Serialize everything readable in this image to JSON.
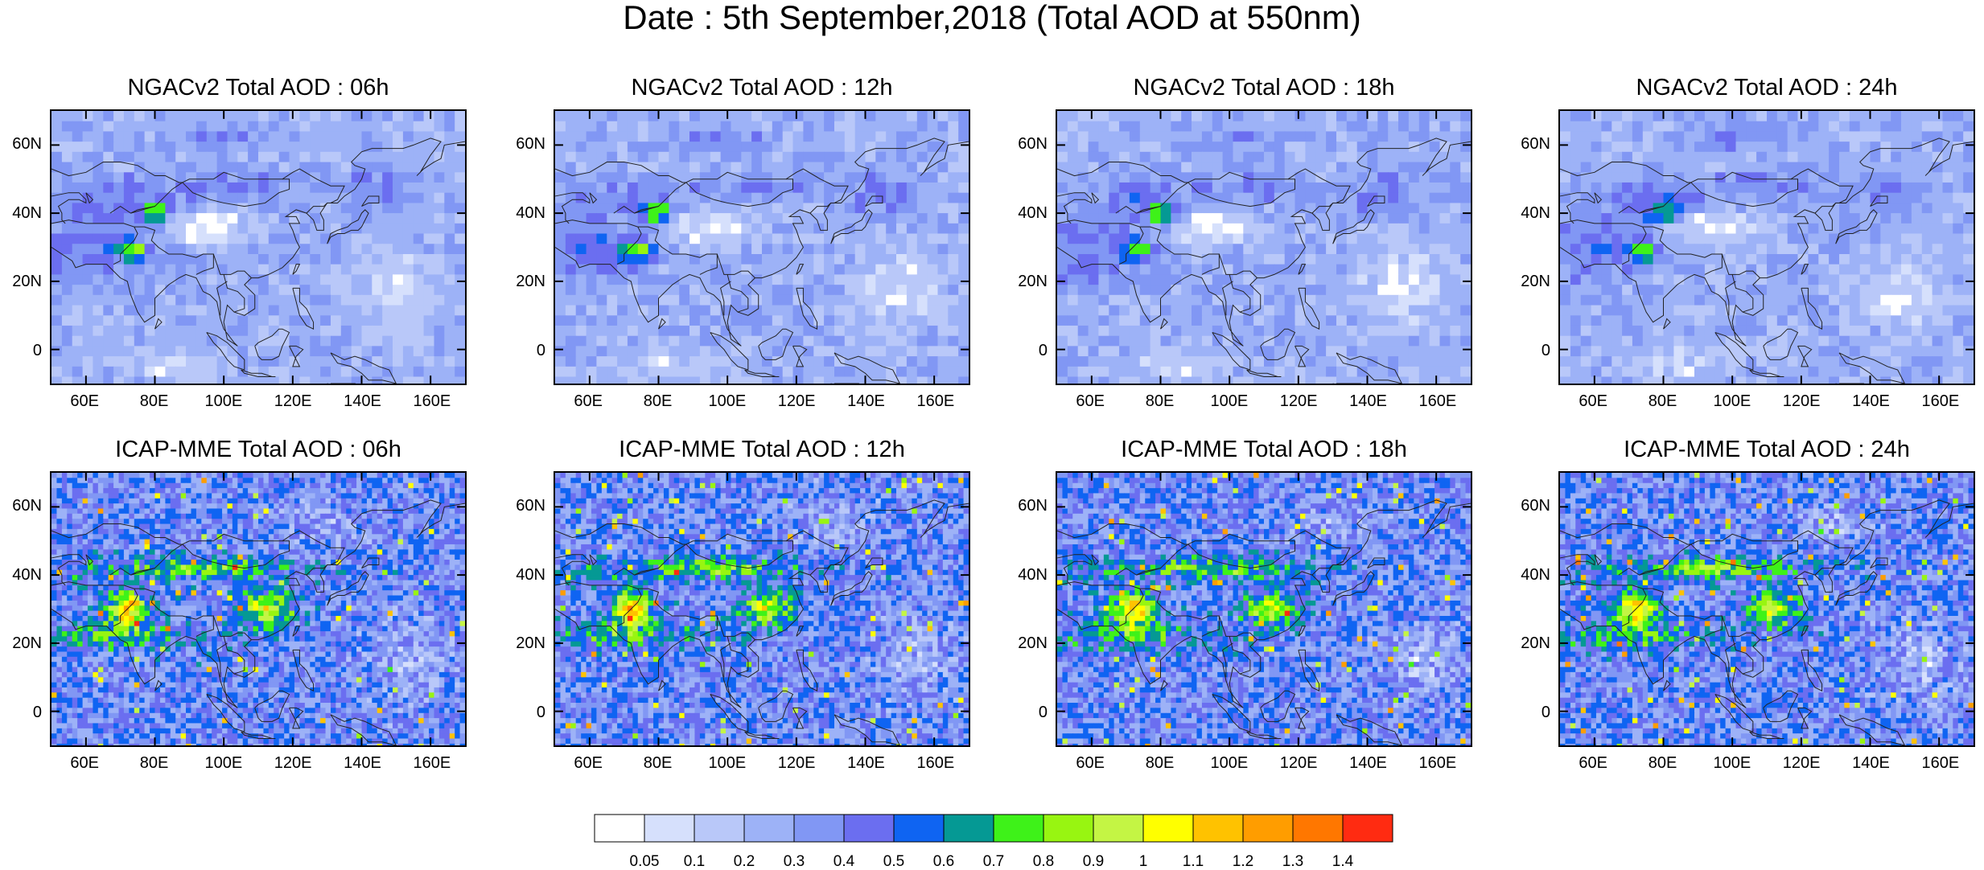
{
  "title": "Date : 5th September,2018 (Total AOD at 550nm)",
  "panels": [
    {
      "title": "NGACv2 Total AOD : 06h",
      "model": "ngac",
      "seed": 11
    },
    {
      "title": "NGACv2 Total AOD : 12h",
      "model": "ngac",
      "seed": 23
    },
    {
      "title": "NGACv2 Total AOD : 18h",
      "model": "ngac",
      "seed": 37
    },
    {
      "title": "NGACv2 Total AOD : 24h",
      "model": "ngac",
      "seed": 41
    },
    {
      "title": "ICAP-MME Total AOD : 06h",
      "model": "icap",
      "seed": 53
    },
    {
      "title": "ICAP-MME Total AOD : 12h",
      "model": "icap",
      "seed": 67
    },
    {
      "title": "ICAP-MME Total AOD : 18h",
      "model": "icap",
      "seed": 71
    },
    {
      "title": "ICAP-MME Total AOD : 24h",
      "model": "icap",
      "seed": 89
    }
  ],
  "axes": {
    "lon_range": [
      50,
      170
    ],
    "lat_range": [
      -10,
      70
    ],
    "lat_ticks": [
      {
        "value": 60,
        "label": "60N"
      },
      {
        "value": 40,
        "label": "40N"
      },
      {
        "value": 20,
        "label": "20N"
      },
      {
        "value": 0,
        "label": "0"
      }
    ],
    "lon_ticks": [
      {
        "value": 60,
        "label": "60E"
      },
      {
        "value": 80,
        "label": "80E"
      },
      {
        "value": 100,
        "label": "100E"
      },
      {
        "value": 120,
        "label": "120E"
      },
      {
        "value": 140,
        "label": "140E"
      },
      {
        "value": 160,
        "label": "160E"
      }
    ]
  },
  "colorbar": {
    "colors": [
      "#ffffff",
      "#d6e0fc",
      "#b9c8f9",
      "#9db2f7",
      "#8197f4",
      "#6b6ef0",
      "#0f64f2",
      "#059994",
      "#3ef219",
      "#98f511",
      "#c4f544",
      "#ffff00",
      "#ffc200",
      "#ff9d00",
      "#ff7700",
      "#ff2b11"
    ],
    "labels": [
      "0.05",
      "0.1",
      "0.2",
      "0.3",
      "0.4",
      "0.5",
      "0.6",
      "0.7",
      "0.8",
      "0.9",
      "1",
      "1.1",
      "1.2",
      "1.3",
      "1.4"
    ]
  }
}
